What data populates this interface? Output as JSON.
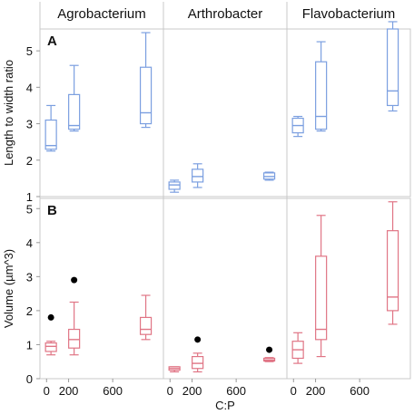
{
  "chart_data": {
    "type": "box",
    "xlabel": "C:P",
    "x_ticks": [
      0,
      200,
      600
    ],
    "x_tick_labels": [
      "0",
      "200",
      "600"
    ],
    "facets": [
      "Agrobacterium",
      "Arthrobacter",
      "Flavobacterium"
    ],
    "panels": [
      {
        "label": "A",
        "ylabel": "Length to width ratio",
        "ylim": [
          1,
          5.6
        ],
        "y_ticks": [
          1,
          2,
          3,
          4,
          5
        ],
        "color": "#7b9fe0",
        "boxes": [
          {
            "facet": "Agrobacterium",
            "x": 40,
            "whisker_low": 2.25,
            "q1": 2.3,
            "median": 2.4,
            "q3": 3.1,
            "whisker_high": 3.5,
            "outliers": []
          },
          {
            "facet": "Agrobacterium",
            "x": 250,
            "whisker_low": 2.8,
            "q1": 2.85,
            "median": 2.95,
            "q3": 3.8,
            "whisker_high": 4.6,
            "outliers": []
          },
          {
            "facet": "Agrobacterium",
            "x": 900,
            "whisker_low": 2.9,
            "q1": 3.0,
            "median": 3.3,
            "q3": 4.55,
            "whisker_high": 5.5,
            "outliers": []
          },
          {
            "facet": "Arthrobacter",
            "x": 40,
            "whisker_low": 1.12,
            "q1": 1.2,
            "median": 1.32,
            "q3": 1.4,
            "whisker_high": 1.45,
            "outliers": []
          },
          {
            "facet": "Arthrobacter",
            "x": 250,
            "whisker_low": 1.25,
            "q1": 1.4,
            "median": 1.55,
            "q3": 1.75,
            "whisker_high": 1.9,
            "outliers": []
          },
          {
            "facet": "Arthrobacter",
            "x": 900,
            "whisker_low": 1.45,
            "q1": 1.48,
            "median": 1.55,
            "q3": 1.65,
            "whisker_high": 1.67,
            "outliers": []
          },
          {
            "facet": "Flavobacterium",
            "x": 40,
            "whisker_low": 2.65,
            "q1": 2.75,
            "median": 2.95,
            "q3": 3.15,
            "whisker_high": 3.2,
            "outliers": []
          },
          {
            "facet": "Flavobacterium",
            "x": 250,
            "whisker_low": 2.8,
            "q1": 2.85,
            "median": 3.2,
            "q3": 4.7,
            "whisker_high": 5.25,
            "outliers": []
          },
          {
            "facet": "Flavobacterium",
            "x": 900,
            "whisker_low": 3.35,
            "q1": 3.5,
            "median": 3.9,
            "q3": 5.6,
            "whisker_high": 5.8,
            "outliers": []
          }
        ]
      },
      {
        "label": "B",
        "ylabel": "Volume (µm^3)",
        "ylim": [
          0,
          5.3
        ],
        "y_ticks": [
          0,
          1,
          2,
          3,
          4,
          5
        ],
        "color": "#e07585",
        "boxes": [
          {
            "facet": "Agrobacterium",
            "x": 40,
            "whisker_low": 0.7,
            "q1": 0.8,
            "median": 0.95,
            "q3": 1.05,
            "whisker_high": 1.1,
            "outliers": [
              1.8
            ]
          },
          {
            "facet": "Agrobacterium",
            "x": 250,
            "whisker_low": 0.7,
            "q1": 0.9,
            "median": 1.15,
            "q3": 1.45,
            "whisker_high": 2.25,
            "outliers": [
              2.9
            ]
          },
          {
            "facet": "Agrobacterium",
            "x": 900,
            "whisker_low": 1.15,
            "q1": 1.3,
            "median": 1.45,
            "q3": 1.8,
            "whisker_high": 2.45,
            "outliers": []
          },
          {
            "facet": "Arthrobacter",
            "x": 40,
            "whisker_low": 0.2,
            "q1": 0.25,
            "median": 0.3,
            "q3": 0.35,
            "whisker_high": 0.35,
            "outliers": []
          },
          {
            "facet": "Arthrobacter",
            "x": 250,
            "whisker_low": 0.2,
            "q1": 0.3,
            "median": 0.45,
            "q3": 0.65,
            "whisker_high": 0.75,
            "outliers": [
              1.15
            ]
          },
          {
            "facet": "Arthrobacter",
            "x": 900,
            "whisker_low": 0.5,
            "q1": 0.52,
            "median": 0.55,
            "q3": 0.6,
            "whisker_high": 0.62,
            "outliers": [
              0.85
            ]
          },
          {
            "facet": "Flavobacterium",
            "x": 40,
            "whisker_low": 0.45,
            "q1": 0.6,
            "median": 0.85,
            "q3": 1.1,
            "whisker_high": 1.35,
            "outliers": []
          },
          {
            "facet": "Flavobacterium",
            "x": 250,
            "whisker_low": 0.65,
            "q1": 1.15,
            "median": 1.45,
            "q3": 3.6,
            "whisker_high": 4.8,
            "outliers": []
          },
          {
            "facet": "Flavobacterium",
            "x": 900,
            "whisker_low": 1.6,
            "q1": 2.0,
            "median": 2.4,
            "q3": 4.35,
            "whisker_high": 5.2,
            "outliers": []
          }
        ]
      }
    ]
  }
}
